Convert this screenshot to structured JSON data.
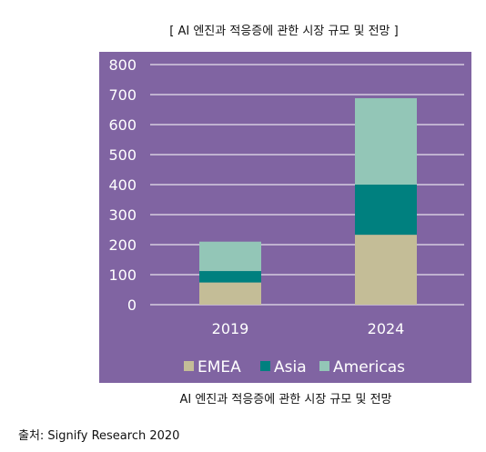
{
  "header_title": "[ AI 엔진과 적응증에 관한 시장 규모 및 전망 ]",
  "caption": "AI 엔진과 적응증에 관한 시장 규모 및 전망",
  "source": "출처: Signify Research 2020",
  "colors": {
    "plot_bg": "#8064a2",
    "gridline": "#ffffff",
    "EMEA": "#c4bd97",
    "Asia": "#00807f",
    "Americas": "#93c6b7"
  },
  "chart_data": {
    "type": "bar",
    "stacked": true,
    "categories": [
      "2019",
      "2024"
    ],
    "series": [
      {
        "name": "EMEA",
        "values": [
          74,
          233
        ]
      },
      {
        "name": "Asia",
        "values": [
          38,
          167
        ]
      },
      {
        "name": "Americas",
        "values": [
          98,
          288
        ]
      }
    ],
    "ylim": [
      0,
      800
    ],
    "yticks": [
      "0",
      "100",
      "200",
      "300",
      "400",
      "500",
      "600",
      "700",
      "800"
    ],
    "grid": true,
    "legend": "bottom"
  }
}
